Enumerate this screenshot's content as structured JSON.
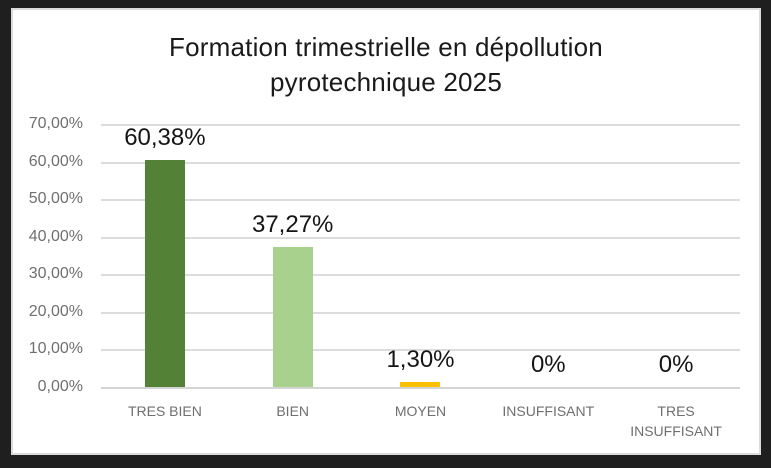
{
  "window": {
    "background": "#1f1f1f"
  },
  "chart": {
    "panel_background": "#ffffff",
    "panel_border_color": "#dcdcdc",
    "title_color": "#1a1a1a",
    "axis_text_color": "#6f6f6f",
    "value_label_color": "#151515",
    "gridline_color": "#dcdcdc"
  },
  "chart_data": {
    "type": "bar",
    "title": "Formation trimestrielle en dépollution pyrotechnique 2025",
    "title_lines": [
      "Formation trimestrielle en dépollution",
      "pyrotechnique 2025"
    ],
    "categories": [
      "TRES BIEN",
      "BIEN",
      "MOYEN",
      "INSUFFISANT",
      "TRES INSUFFISANT"
    ],
    "values": [
      60.38,
      37.27,
      1.3,
      0,
      0
    ],
    "value_labels": [
      "60,38%",
      "37,27%",
      "1,30%",
      "0%",
      "0%"
    ],
    "bar_colors": [
      "#538135",
      "#a9d18e",
      "#ffc000",
      null,
      null
    ],
    "xlabel": "",
    "ylabel": "",
    "ylim": [
      0,
      70
    ],
    "y_ticks": [
      0,
      10,
      20,
      30,
      40,
      50,
      60,
      70
    ],
    "y_tick_labels": [
      "0,00%",
      "10,00%",
      "20,00%",
      "30,00%",
      "40,00%",
      "50,00%",
      "60,00%",
      "70,00%"
    ],
    "grid": true,
    "legend_position": "none"
  }
}
